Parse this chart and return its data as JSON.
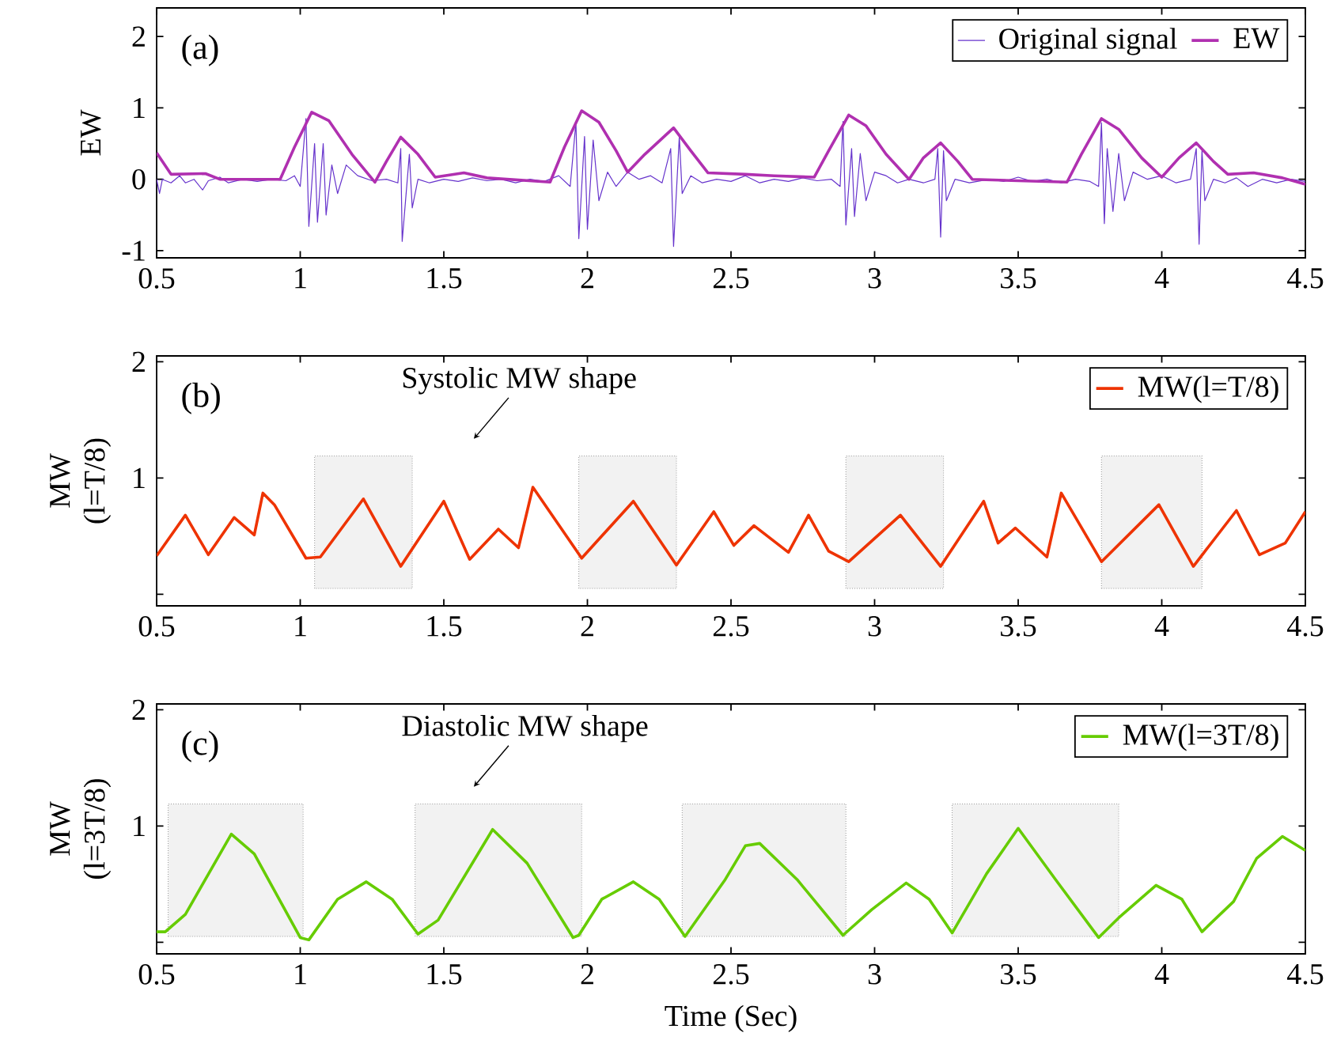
{
  "chart_data": [
    {
      "type": "line",
      "ylabel": "EW",
      "xlim": [
        0.5,
        4.5
      ],
      "xticks": [
        0.5,
        1,
        1.5,
        2,
        2.5,
        3,
        3.5,
        4,
        4.5
      ],
      "ylim": [
        -1.1,
        2.4
      ],
      "yticks": [
        -1,
        0,
        1,
        2
      ],
      "legend": "top right",
      "annotations": [
        "(a)"
      ],
      "series": [
        {
          "name": "Original signal",
          "color": "#6633cc",
          "x": [
            0.5,
            0.51,
            0.52,
            0.55,
            0.58,
            0.6,
            0.63,
            0.66,
            0.68,
            0.72,
            0.75,
            0.8,
            0.85,
            0.9,
            0.95,
            0.98,
            1.0,
            1.02,
            1.03,
            1.05,
            1.06,
            1.08,
            1.09,
            1.11,
            1.13,
            1.16,
            1.2,
            1.25,
            1.3,
            1.34,
            1.35,
            1.355,
            1.38,
            1.39,
            1.41,
            1.45,
            1.5,
            1.55,
            1.6,
            1.65,
            1.7,
            1.75,
            1.8,
            1.85,
            1.9,
            1.94,
            1.96,
            1.97,
            1.99,
            2.0,
            2.02,
            2.04,
            2.07,
            2.1,
            2.14,
            2.18,
            2.22,
            2.26,
            2.29,
            2.3,
            2.32,
            2.33,
            2.36,
            2.4,
            2.45,
            2.5,
            2.55,
            2.6,
            2.65,
            2.7,
            2.75,
            2.8,
            2.85,
            2.88,
            2.89,
            2.9,
            2.92,
            2.93,
            2.95,
            2.97,
            3.0,
            3.04,
            3.08,
            3.12,
            3.17,
            3.21,
            3.22,
            3.23,
            3.24,
            3.25,
            3.28,
            3.33,
            3.4,
            3.45,
            3.5,
            3.55,
            3.6,
            3.65,
            3.7,
            3.75,
            3.78,
            3.79,
            3.8,
            3.81,
            3.83,
            3.85,
            3.87,
            3.9,
            3.95,
            4.0,
            4.05,
            4.1,
            4.12,
            4.13,
            4.14,
            4.15,
            4.18,
            4.22,
            4.26,
            4.3,
            4.35,
            4.4,
            4.45,
            4.5
          ],
          "values": [
            0.0,
            -0.2,
            0.0,
            -0.05,
            0.05,
            -0.05,
            0.0,
            -0.15,
            -0.02,
            0.03,
            -0.05,
            0.0,
            -0.03,
            0.0,
            -0.02,
            0.05,
            -0.1,
            0.85,
            -0.66,
            0.5,
            -0.6,
            0.5,
            -0.5,
            0.2,
            -0.2,
            0.2,
            0.05,
            -0.02,
            0.0,
            -0.05,
            0.43,
            -0.87,
            0.35,
            -0.4,
            0.0,
            -0.05,
            0.0,
            -0.03,
            0.02,
            -0.02,
            0.0,
            -0.05,
            0.0,
            -0.03,
            0.05,
            -0.1,
            0.8,
            -0.83,
            0.6,
            -0.7,
            0.55,
            -0.3,
            0.1,
            -0.1,
            0.1,
            0.0,
            0.05,
            -0.05,
            0.43,
            -0.94,
            0.6,
            -0.2,
            0.05,
            -0.05,
            0.0,
            -0.03,
            0.05,
            -0.05,
            0.0,
            -0.03,
            0.02,
            -0.02,
            0.0,
            -0.1,
            0.81,
            -0.64,
            0.43,
            -0.52,
            0.36,
            -0.3,
            0.1,
            0.05,
            -0.05,
            0.0,
            -0.05,
            0.0,
            0.43,
            -0.81,
            0.4,
            -0.3,
            0.0,
            -0.05,
            0.0,
            -0.03,
            0.03,
            -0.03,
            0.0,
            -0.05,
            0.0,
            -0.03,
            -0.1,
            0.79,
            -0.62,
            0.43,
            -0.45,
            0.36,
            -0.3,
            0.1,
            0.0,
            0.05,
            -0.05,
            0.0,
            0.43,
            -0.91,
            0.4,
            -0.3,
            0.0,
            -0.05,
            0.02,
            -0.1,
            0.0,
            -0.05,
            0.0,
            -0.03
          ]
        },
        {
          "name": "EW",
          "color": "#b030b0",
          "x": [
            0.5,
            0.55,
            0.67,
            0.72,
            0.93,
            0.98,
            1.04,
            1.1,
            1.18,
            1.26,
            1.3,
            1.35,
            1.41,
            1.47,
            1.57,
            1.65,
            1.87,
            1.92,
            1.98,
            2.04,
            2.1,
            2.14,
            2.2,
            2.3,
            2.36,
            2.42,
            2.55,
            2.65,
            2.79,
            2.84,
            2.91,
            2.97,
            3.04,
            3.12,
            3.17,
            3.23,
            3.29,
            3.34,
            3.5,
            3.67,
            3.72,
            3.79,
            3.85,
            3.93,
            4.0,
            4.06,
            4.12,
            4.18,
            4.23,
            4.32,
            4.42,
            4.5
          ],
          "values": [
            0.37,
            0.07,
            0.08,
            0.0,
            0.0,
            0.45,
            0.94,
            0.82,
            0.35,
            -0.04,
            0.25,
            0.59,
            0.35,
            0.03,
            0.09,
            0.02,
            -0.04,
            0.45,
            0.96,
            0.8,
            0.4,
            0.1,
            0.35,
            0.72,
            0.4,
            0.09,
            0.07,
            0.05,
            0.03,
            0.4,
            0.9,
            0.75,
            0.35,
            0.0,
            0.3,
            0.51,
            0.25,
            0.0,
            -0.02,
            -0.04,
            0.35,
            0.85,
            0.7,
            0.3,
            0.03,
            0.3,
            0.51,
            0.25,
            0.07,
            0.09,
            0.02,
            -0.07
          ]
        }
      ]
    },
    {
      "type": "line",
      "ylabel": "MW (l=T/8)",
      "xlim": [
        0.5,
        4.5
      ],
      "xticks": [
        0.5,
        1,
        1.5,
        2,
        2.5,
        3,
        3.5,
        4,
        4.5
      ],
      "ylim": [
        -0.1,
        2.05
      ],
      "yticks": [
        {
          "value": 0,
          "label": null
        },
        1,
        2
      ],
      "legend": "top right",
      "annotations": [
        "(b)",
        "Systolic MW shape"
      ],
      "bands": [
        {
          "axis": "x",
          "from": 1.05,
          "to": 1.39,
          "color": "#999999"
        },
        {
          "axis": "x",
          "from": 1.97,
          "to": 2.31,
          "color": "#999999"
        },
        {
          "axis": "x",
          "from": 2.9,
          "to": 3.24,
          "color": "#999999"
        },
        {
          "axis": "x",
          "from": 3.79,
          "to": 4.14,
          "color": "#999999"
        }
      ],
      "series": [
        {
          "name": "MW(l=T/8)",
          "color": "#ee3300",
          "x": [
            0.5,
            0.6,
            0.68,
            0.77,
            0.84,
            0.87,
            0.91,
            1.02,
            1.07,
            1.22,
            1.35,
            1.5,
            1.59,
            1.69,
            1.76,
            1.81,
            1.98,
            2.16,
            2.31,
            2.44,
            2.51,
            2.58,
            2.7,
            2.77,
            2.84,
            2.91,
            3.09,
            3.23,
            3.38,
            3.43,
            3.49,
            3.6,
            3.65,
            3.79,
            3.99,
            4.11,
            4.26,
            4.34,
            4.43,
            4.5
          ],
          "values": [
            0.33,
            0.68,
            0.34,
            0.66,
            0.51,
            0.87,
            0.77,
            0.31,
            0.32,
            0.82,
            0.24,
            0.8,
            0.3,
            0.56,
            0.4,
            0.92,
            0.31,
            0.8,
            0.25,
            0.71,
            0.42,
            0.59,
            0.36,
            0.68,
            0.37,
            0.28,
            0.68,
            0.24,
            0.8,
            0.44,
            0.57,
            0.32,
            0.87,
            0.28,
            0.77,
            0.24,
            0.72,
            0.34,
            0.44,
            0.71
          ]
        }
      ]
    },
    {
      "type": "line",
      "xlabel": "Time (Sec)",
      "ylabel": "MW (l=3T/8)",
      "xlim": [
        0.5,
        4.5
      ],
      "xticks": [
        0.5,
        1,
        1.5,
        2,
        2.5,
        3,
        3.5,
        4,
        4.5
      ],
      "ylim": [
        -0.1,
        2.05
      ],
      "yticks": [
        {
          "value": 0,
          "label": null
        },
        1,
        2
      ],
      "legend": "top right",
      "annotations": [
        "(c)",
        "Diastolic MW shape"
      ],
      "bands": [
        {
          "axis": "x",
          "from": 0.54,
          "to": 1.01,
          "color": "#999999"
        },
        {
          "axis": "x",
          "from": 1.4,
          "to": 1.98,
          "color": "#999999"
        },
        {
          "axis": "x",
          "from": 2.33,
          "to": 2.9,
          "color": "#999999"
        },
        {
          "axis": "x",
          "from": 3.27,
          "to": 3.85,
          "color": "#999999"
        }
      ],
      "series": [
        {
          "name": "MW(l=3T/8)",
          "color": "#66cc00",
          "x": [
            0.5,
            0.53,
            0.6,
            0.76,
            0.84,
            1.0,
            1.03,
            1.13,
            1.23,
            1.32,
            1.41,
            1.48,
            1.67,
            1.79,
            1.95,
            1.97,
            2.05,
            2.16,
            2.25,
            2.34,
            2.48,
            2.55,
            2.6,
            2.73,
            2.89,
            2.99,
            3.11,
            3.19,
            3.27,
            3.39,
            3.5,
            3.63,
            3.78,
            3.85,
            3.98,
            4.07,
            4.14,
            4.25,
            4.33,
            4.42,
            4.5
          ],
          "values": [
            0.09,
            0.09,
            0.24,
            0.93,
            0.76,
            0.04,
            0.02,
            0.37,
            0.52,
            0.37,
            0.07,
            0.19,
            0.97,
            0.68,
            0.04,
            0.06,
            0.37,
            0.52,
            0.37,
            0.05,
            0.54,
            0.83,
            0.85,
            0.54,
            0.06,
            0.28,
            0.51,
            0.37,
            0.08,
            0.59,
            0.98,
            0.54,
            0.04,
            0.21,
            0.49,
            0.37,
            0.09,
            0.35,
            0.72,
            0.91,
            0.79
          ]
        }
      ]
    }
  ]
}
